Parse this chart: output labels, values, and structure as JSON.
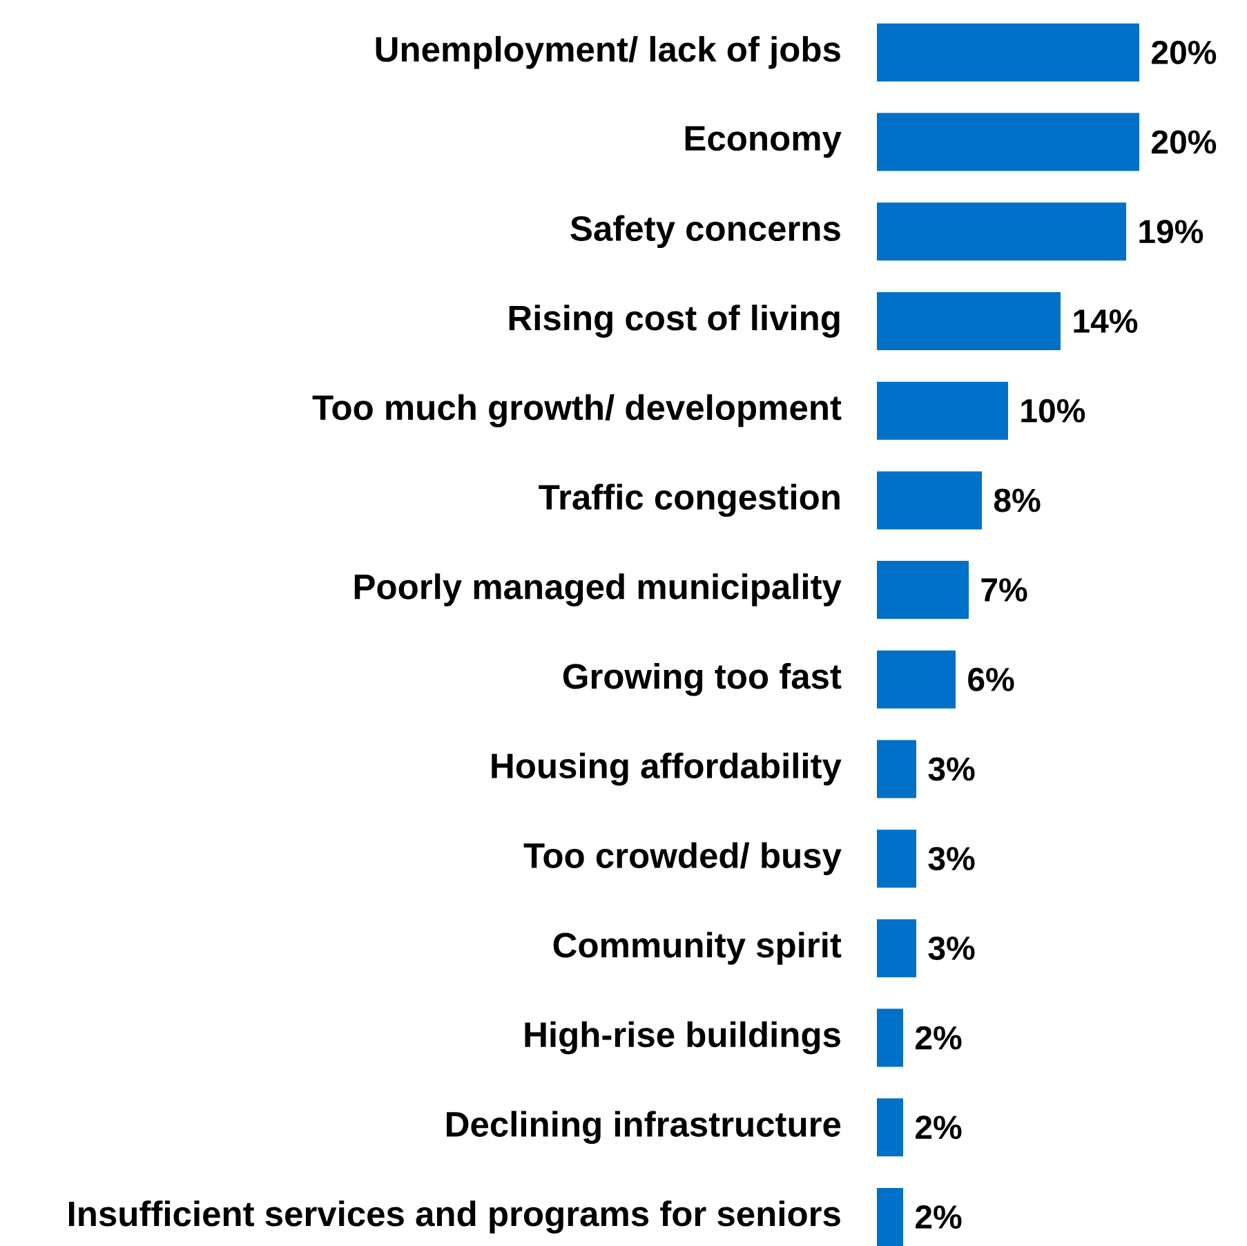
{
  "chart_data": {
    "type": "bar",
    "orientation": "horizontal",
    "categories": [
      "Unemployment/ lack of jobs",
      "Economy",
      "Safety concerns",
      "Rising cost of living",
      "Too much growth/ development",
      "Traffic congestion",
      "Poorly managed municipality",
      "Growing too fast",
      "Housing affordability",
      "Too crowded/ busy",
      "Community spirit",
      "High-rise buildings",
      "Declining infrastructure",
      "Insufficient services and programs for seniors"
    ],
    "values": [
      20,
      20,
      19,
      14,
      10,
      8,
      7,
      6,
      3,
      3,
      3,
      2,
      2,
      2
    ],
    "value_labels": [
      "20%",
      "20%",
      "19%",
      "14%",
      "10%",
      "8%",
      "7%",
      "6%",
      "3%",
      "3%",
      "3%",
      "2%",
      "2%",
      "2%"
    ],
    "color": "#0070c8",
    "tick_labels": "y"
  }
}
